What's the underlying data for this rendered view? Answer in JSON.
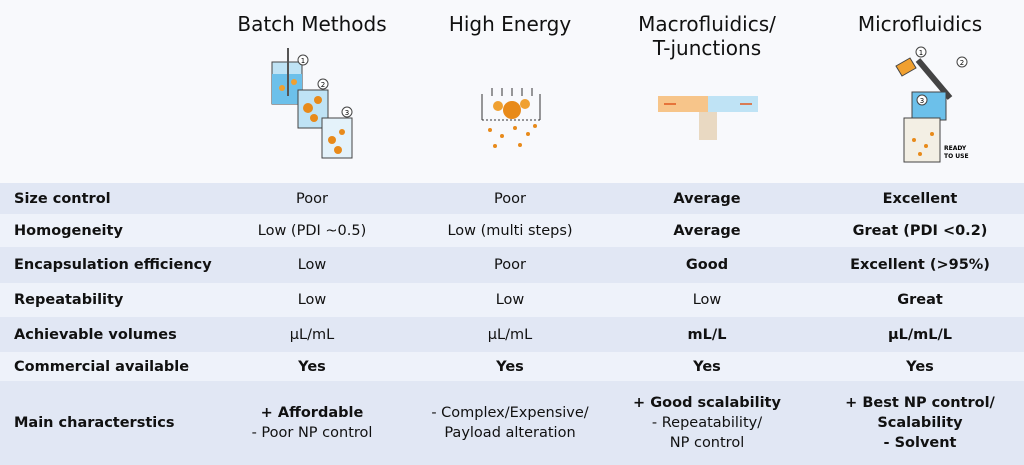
{
  "columns": [
    [
      "Batch Methods"
    ],
    [
      "High Energy"
    ],
    [
      "Macrofluidics/",
      "T-junctions"
    ],
    [
      "Microfluidics"
    ]
  ],
  "icon_steps": {
    "batch": [
      "1",
      "2",
      "3"
    ],
    "microfluidics": [
      "1",
      "2",
      "3"
    ]
  },
  "icon_text": [
    "READY",
    "TO USE"
  ],
  "rows": [
    {
      "label": "Size control",
      "cells": [
        [
          "Poor"
        ],
        [
          "Poor"
        ],
        [
          "Average"
        ],
        [
          "Excellent"
        ]
      ]
    },
    {
      "label": "Homogeneity",
      "cells": [
        [
          "Low (PDI ~0.5)"
        ],
        [
          "Low (multi steps)"
        ],
        [
          "Average"
        ],
        [
          "Great (PDI <0.2)"
        ]
      ]
    },
    {
      "label": "Encapsulation efficiency",
      "cells": [
        [
          "Low"
        ],
        [
          "Poor"
        ],
        [
          "Good"
        ],
        [
          "Excellent (>95%)"
        ]
      ]
    },
    {
      "label": "Repeatability",
      "cells": [
        [
          "Low"
        ],
        [
          "Low"
        ],
        [
          "Low"
        ],
        [
          "Great"
        ]
      ]
    },
    {
      "label": "Achievable volumes",
      "cells": [
        [
          "µL/mL"
        ],
        [
          "µL/mL"
        ],
        [
          "mL/L"
        ],
        [
          "µL/mL/L"
        ]
      ]
    },
    {
      "label": "Commercial available",
      "cells": [
        [
          "Yes"
        ],
        [
          "Yes"
        ],
        [
          "Yes"
        ],
        [
          "Yes"
        ]
      ]
    },
    {
      "label": "Main characterstics",
      "cells": [
        [
          "+ Affordable",
          "- Poor NP control"
        ],
        [
          "- Complex/Expensive/",
          "Payload alteration"
        ],
        [
          "+ Good scalability",
          "- Repeatability/",
          "NP control"
        ],
        [
          "+ Best NP control/",
          "Scalability",
          "- Solvent"
        ]
      ]
    }
  ]
}
